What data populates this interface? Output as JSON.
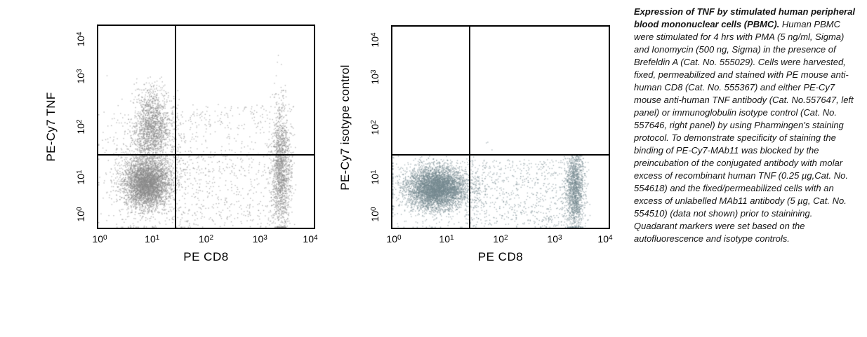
{
  "caption": {
    "title": "Expression of TNF by stimulated human peripheral blood mononuclear cells (PBMC).",
    "body": " Human PBMC were stimulated for 4 hrs with PMA (5 ng/ml, Sigma) and Ionomycin (500 ng, Sigma) in the presence of Brefeldin A (Cat. No. 555029). Cells were harvested, fixed, permeabilized and stained with PE mouse anti-human CD8 (Cat. No. 555367) and either PE-Cy7 mouse anti-human TNF antibody (Cat. No.557647, left panel) or immunoglobulin isotype control (Cat. No. 557646, right panel) by using Pharmingen's staining protocol. To demonstrate specificity of staining the binding of PE-Cy7-MAb11 was blocked by the preincubation of the conjugated antibody with molar excess of recombinant human TNF (0.25 µg,Cat. No. 554618) and the fixed/permeabilized cells with an excess of unlabelled MAb11 antibody (5 µg, Cat. No. 554510) (data not shown) prior to stainining. Quadarant markers were set based on the autofluorescence and isotype controls."
  },
  "chart_data": [
    {
      "type": "scatter",
      "panel": "left",
      "xlabel": "PE CD8",
      "ylabel": "PE-Cy7 TNF",
      "xscale": "log",
      "yscale": "log",
      "xlim": [
        1,
        10000
      ],
      "ylim": [
        1,
        10000
      ],
      "x_ticks": [
        "10^0",
        "10^1",
        "10^2",
        "10^3",
        "10^4"
      ],
      "y_ticks": [
        "10^0",
        "10^1",
        "10^2",
        "10^3",
        "10^4"
      ],
      "grid": false,
      "legend": false,
      "quadrant_marker": {
        "x": 27,
        "y": 28
      },
      "dot_color": "#8a8a8a",
      "populations": [
        {
          "label": "CD8-negative TNF-negative lymphocytes",
          "shape": "gaussian",
          "center_log10": [
            0.9,
            0.87
          ],
          "sigma_log10": [
            0.21,
            0.24
          ],
          "n": 3600
        },
        {
          "label": "CD8-negative TNF-positive cells",
          "shape": "gaussian",
          "center_log10": [
            1.0,
            2.0
          ],
          "sigma_log10": [
            0.16,
            0.36
          ],
          "n": 1500
        },
        {
          "label": "halo around negative population",
          "shape": "gaussian",
          "center_log10": [
            0.92,
            1.15
          ],
          "sigma_log10": [
            0.4,
            0.6
          ],
          "n": 900
        },
        {
          "label": "CD8-positive band (partly TNF-positive)",
          "shape": "gaussian",
          "center_log10": [
            3.4,
            1.15
          ],
          "sigma_log10": [
            0.09,
            0.62
          ],
          "n": 1600
        },
        {
          "label": "intermediate scatter below marker",
          "shape": "uniform",
          "range_log10": {
            "x": [
              1.35,
              3.2
            ],
            "y": [
              0.0,
              1.45
            ]
          },
          "n": 430
        },
        {
          "label": "intermediate scatter above marker",
          "shape": "uniform",
          "range_log10": {
            "x": [
              1.35,
              3.2
            ],
            "y": [
              1.45,
              2.45
            ]
          },
          "n": 220
        }
      ]
    },
    {
      "type": "scatter",
      "panel": "right",
      "xlabel": "PE CD8",
      "ylabel": "PE-Cy7 isotype control",
      "xscale": "log",
      "yscale": "log",
      "xlim": [
        1,
        10000
      ],
      "ylim": [
        1,
        10000
      ],
      "x_ticks": [
        "10^0",
        "10^1",
        "10^2",
        "10^3",
        "10^4"
      ],
      "y_ticks": [
        "10^0",
        "10^1",
        "10^2",
        "10^3",
        "10^4"
      ],
      "grid": false,
      "legend": false,
      "quadrant_marker": {
        "x": 27,
        "y": 28
      },
      "dot_color": "#75898f",
      "populations": [
        {
          "label": "CD8-negative PBMC, isotype negative",
          "shape": "gaussian",
          "center_log10": [
            0.82,
            0.78
          ],
          "sigma_log10": [
            0.27,
            0.2
          ],
          "n": 4200,
          "ymax_log10": 1.4
        },
        {
          "label": "halo around negative population",
          "shape": "gaussian",
          "center_log10": [
            0.85,
            0.8
          ],
          "sigma_log10": [
            0.45,
            0.33
          ],
          "n": 800,
          "ymax_log10": 1.42
        },
        {
          "label": "CD8-positive band, isotype negative",
          "shape": "gaussian",
          "center_log10": [
            3.38,
            0.8
          ],
          "sigma_log10": [
            0.09,
            0.42
          ],
          "n": 1400,
          "ymax_log10": 1.45
        },
        {
          "label": "intermediate scatter below marker",
          "shape": "uniform",
          "range_log10": {
            "x": [
              1.35,
              3.2
            ],
            "y": [
              0.0,
              1.35
            ]
          },
          "n": 650
        },
        {
          "label": "rare events above marker",
          "shape": "uniform",
          "range_log10": {
            "x": [
              1.6,
              1.85
            ],
            "y": [
              1.5,
              1.72
            ]
          },
          "n": 3
        }
      ]
    }
  ]
}
